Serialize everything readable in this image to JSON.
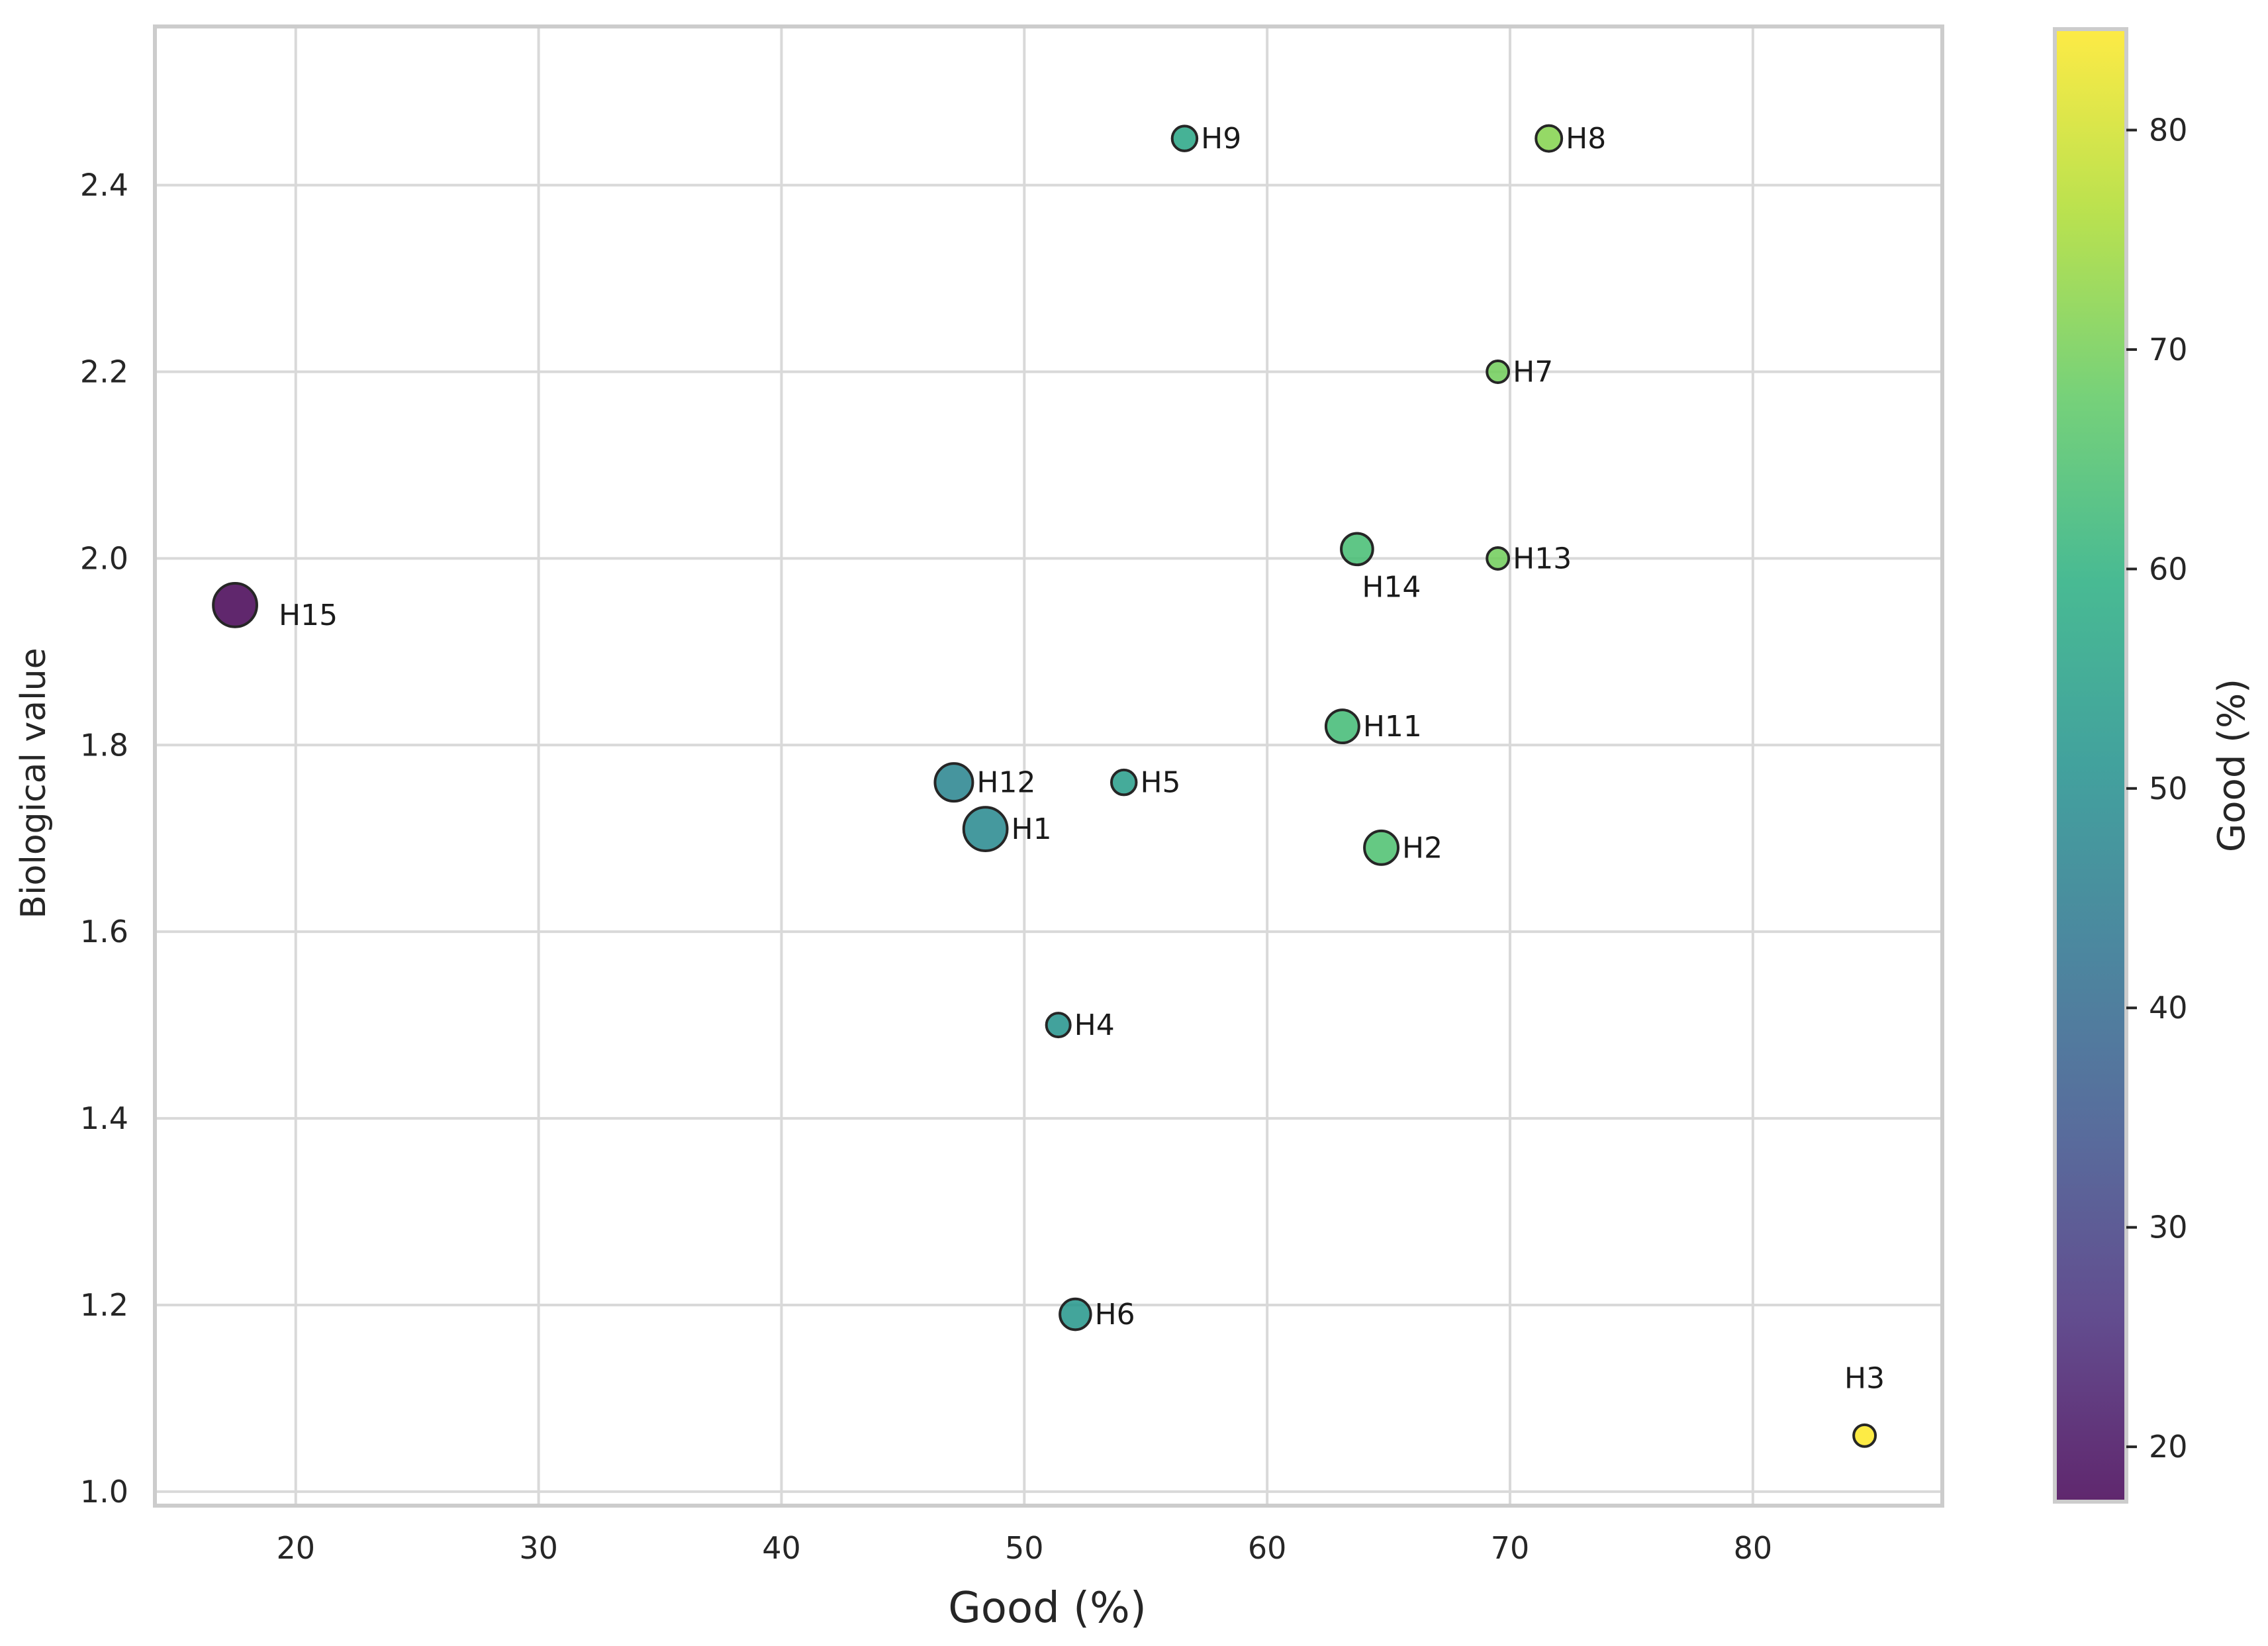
{
  "chart_data": {
    "type": "scatter",
    "title": "",
    "xlabel": "Good (%)",
    "ylabel": "Biological value",
    "xlim": [
      14.2,
      87.8
    ],
    "ylim": [
      0.985,
      2.57
    ],
    "x_ticks": [
      20,
      30,
      40,
      50,
      60,
      70,
      80
    ],
    "y_ticks": [
      1.0,
      1.2,
      1.4,
      1.6,
      1.8,
      2.0,
      2.2,
      2.4
    ],
    "grid": true,
    "legend": "none",
    "colorbar": {
      "label": "Good (%)",
      "range": [
        17.5,
        84.6
      ],
      "ticks": [
        20,
        30,
        40,
        50,
        60,
        70,
        80
      ],
      "colormap": "viridis"
    },
    "points": [
      {
        "label": "H1",
        "x": 48.4,
        "y": 1.71,
        "size": 4.0
      },
      {
        "label": "H2",
        "x": 64.7,
        "y": 1.69,
        "size": 2.4
      },
      {
        "label": "H3",
        "x": 84.6,
        "y": 1.06,
        "size": 1.0
      },
      {
        "label": "H4",
        "x": 51.4,
        "y": 1.5,
        "size": 1.2
      },
      {
        "label": "H5",
        "x": 54.1,
        "y": 1.76,
        "size": 1.3
      },
      {
        "label": "H6",
        "x": 52.1,
        "y": 1.19,
        "size": 2.0
      },
      {
        "label": "H7",
        "x": 69.5,
        "y": 2.2,
        "size": 1.0
      },
      {
        "label": "H8",
        "x": 71.6,
        "y": 2.45,
        "size": 1.4
      },
      {
        "label": "H9",
        "x": 56.6,
        "y": 2.45,
        "size": 1.3
      },
      {
        "label": "H11",
        "x": 63.1,
        "y": 1.82,
        "size": 2.3
      },
      {
        "label": "H12",
        "x": 47.1,
        "y": 1.76,
        "size": 3.0
      },
      {
        "label": "H13",
        "x": 69.5,
        "y": 2.0,
        "size": 1.0
      },
      {
        "label": "H14",
        "x": 63.7,
        "y": 2.01,
        "size": 2.1
      },
      {
        "label": "H15",
        "x": 17.5,
        "y": 1.95,
        "size": 4.0
      }
    ]
  }
}
